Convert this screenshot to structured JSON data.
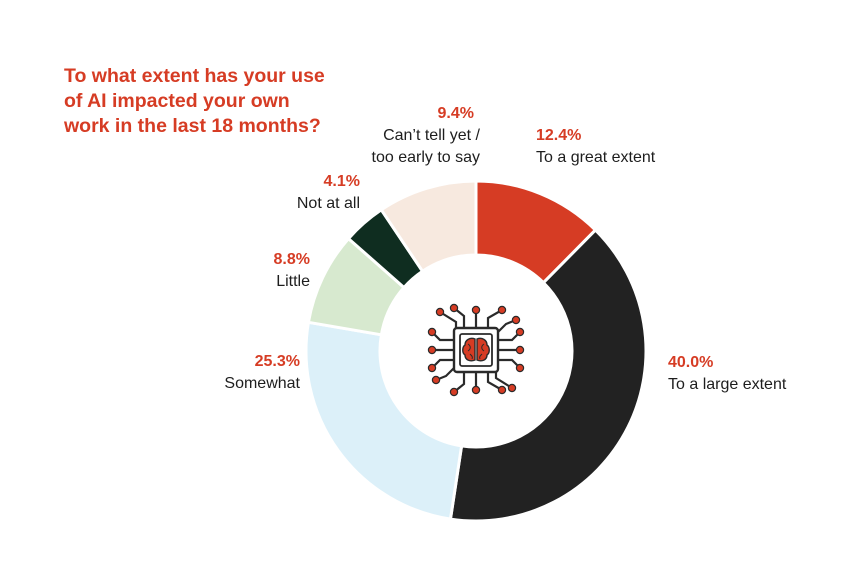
{
  "title_lines": [
    "To what extent has your use",
    "of AI impacted your own",
    "work in the last 18 months?"
  ],
  "center_icon": "ai-brain-chip-icon",
  "colors": {
    "accent": "#d63c24",
    "slice_great": "#d63c24",
    "slice_large": "#222222",
    "slice_somewhat": "#dcf0f9",
    "slice_little": "#d7e9cf",
    "slice_not_at_all": "#0f2d20",
    "slice_cant_tell": "#f7e9df"
  },
  "chart_data": {
    "type": "pie",
    "donut": true,
    "title": "To what extent has your use of AI impacted your own work in the last 18 months?",
    "unit": "%",
    "slices": [
      {
        "label": "To a great extent",
        "value": 12.4,
        "value_label": "12.4%",
        "color": "#d63c24"
      },
      {
        "label": "To a large extent",
        "value": 40.0,
        "value_label": "40.0%",
        "color": "#222222"
      },
      {
        "label": "Somewhat",
        "value": 25.3,
        "value_label": "25.3%",
        "color": "#dcf0f9"
      },
      {
        "label": "Little",
        "value": 8.8,
        "value_label": "8.8%",
        "color": "#d7e9cf"
      },
      {
        "label": "Not at all",
        "value": 4.1,
        "value_label": "4.1%",
        "color": "#0f2d20"
      },
      {
        "label_lines": [
          "Can’t tell yet /",
          "too early to say"
        ],
        "value": 9.4,
        "value_label": "9.4%",
        "color": "#f7e9df"
      }
    ]
  }
}
